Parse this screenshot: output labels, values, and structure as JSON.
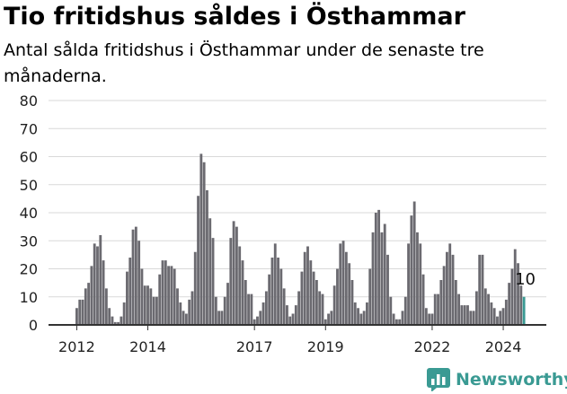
{
  "title": "Tio fritidshus såldes i Östhammar",
  "subtitle": "Antal sålda fritidshus i Östhammar under de senaste tre månaderna.",
  "brand": {
    "name": "Newsworthy",
    "icon": "newsworthy-logo-icon"
  },
  "colors": {
    "bar": "#6b6a70",
    "highlight": "#3a9a93",
    "grid": "#d9d9d9",
    "axis": "#333333"
  },
  "chart_data": {
    "type": "bar",
    "title": "",
    "xlabel": "",
    "ylabel": "",
    "ylim": [
      0,
      80
    ],
    "yticks": [
      0,
      10,
      20,
      30,
      40,
      50,
      60,
      70,
      80
    ],
    "grid": true,
    "x_start": "2012-01",
    "x_tick_labels": [
      {
        "label": "2012",
        "month": "2012-01"
      },
      {
        "label": "2014",
        "month": "2014-01"
      },
      {
        "label": "2017",
        "month": "2017-01"
      },
      {
        "label": "2019",
        "month": "2019-01"
      },
      {
        "label": "2022",
        "month": "2022-01"
      },
      {
        "label": "2024",
        "month": "2024-01"
      }
    ],
    "values": [
      6,
      9,
      9,
      13,
      15,
      21,
      29,
      28,
      32,
      23,
      13,
      6,
      3,
      1,
      1,
      3,
      8,
      19,
      24,
      34,
      35,
      30,
      20,
      14,
      14,
      13,
      10,
      10,
      18,
      23,
      23,
      21,
      21,
      20,
      13,
      8,
      5,
      4,
      9,
      12,
      26,
      46,
      61,
      58,
      48,
      38,
      31,
      10,
      5,
      5,
      10,
      15,
      31,
      37,
      35,
      28,
      23,
      16,
      11,
      11,
      2,
      3,
      5,
      8,
      12,
      18,
      24,
      29,
      24,
      20,
      13,
      7,
      3,
      4,
      7,
      12,
      19,
      26,
      28,
      23,
      19,
      16,
      12,
      11,
      2,
      4,
      5,
      14,
      20,
      29,
      30,
      26,
      22,
      16,
      8,
      6,
      4,
      5,
      8,
      20,
      33,
      40,
      41,
      33,
      36,
      25,
      10,
      4,
      2,
      2,
      5,
      10,
      29,
      39,
      44,
      33,
      29,
      18,
      6,
      4,
      4,
      11,
      11,
      16,
      21,
      26,
      29,
      25,
      16,
      11,
      7,
      7,
      7,
      5,
      5,
      12,
      25,
      25,
      13,
      11,
      8,
      6,
      3,
      5,
      6,
      9,
      15,
      20,
      27,
      22,
      14,
      10
    ],
    "highlight": {
      "month": "2024-08",
      "value": 10,
      "label": "10"
    }
  }
}
